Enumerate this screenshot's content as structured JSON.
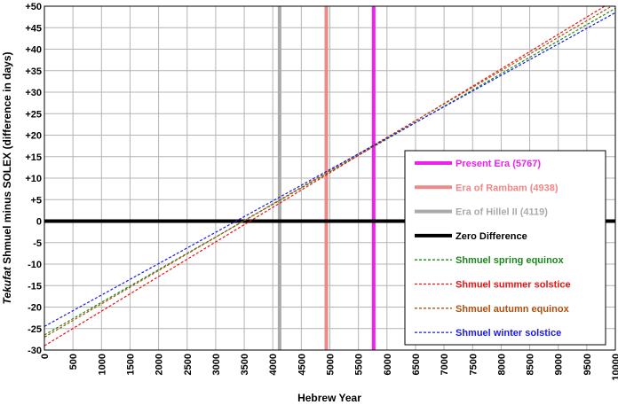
{
  "chart_data": {
    "type": "line",
    "xlabel": "Hebrew Year",
    "ylabel_prefix": "Tekufat",
    "ylabel_rest": " Shmuel minus SOLEX (difference in days)",
    "xlim": [
      0,
      10000
    ],
    "ylim": [
      -30,
      50
    ],
    "x_ticks": [
      "0",
      "500",
      "1000",
      "1500",
      "2000",
      "2500",
      "3000",
      "3500",
      "4000",
      "4500",
      "5000",
      "5500",
      "6000",
      "6500",
      "7000",
      "7500",
      "8000",
      "8500",
      "9000",
      "9500",
      "10000"
    ],
    "y_ticks": [
      "+50",
      "+45",
      "+40",
      "+35",
      "+30",
      "+25",
      "+20",
      "+15",
      "+10",
      "+5",
      "0",
      "-5",
      "-10",
      "-15",
      "-20",
      "-25",
      "-30"
    ],
    "grid": true,
    "legend_position": "right",
    "vertical_markers": [
      {
        "name": "Present Era (5767)",
        "x": 5767,
        "color": "#ee22ee"
      },
      {
        "name": "Era of Rambam (4938)",
        "x": 4938,
        "color": "#f08888"
      },
      {
        "name": "Era of Hillel II (4119)",
        "x": 4119,
        "color": "#aaaaaa"
      }
    ],
    "zero_line": {
      "name": "Zero Difference",
      "y": 0,
      "color": "#000000"
    },
    "series": [
      {
        "name": "Shmuel spring equinox",
        "color": "#1a8a1a",
        "points": [
          [
            0,
            -26.5
          ],
          [
            10000,
            49.5
          ]
        ]
      },
      {
        "name": "Shmuel summer solstice",
        "color": "#ee1111",
        "points": [
          [
            0,
            -29
          ],
          [
            10000,
            51.5
          ]
        ]
      },
      {
        "name": "Shmuel autumn equinox",
        "color": "#b05010",
        "points": [
          [
            0,
            -27
          ],
          [
            10000,
            50.5
          ]
        ]
      },
      {
        "name": "Shmuel winter solstice",
        "color": "#1a1aee",
        "points": [
          [
            0,
            -24.5
          ],
          [
            10000,
            48.5
          ]
        ]
      }
    ]
  }
}
